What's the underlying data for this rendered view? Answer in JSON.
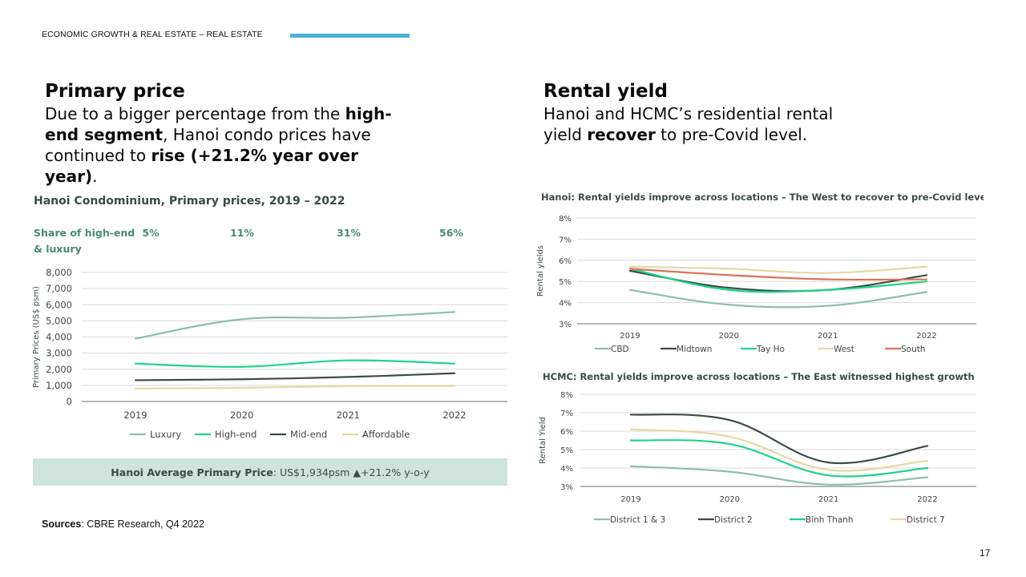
{
  "header": {
    "section": "ECONOMIC GROWTH & REAL ESTATE – REAL ESTATE",
    "accent_color": "#4ab3d4"
  },
  "left": {
    "title": "Primary price",
    "body": [
      {
        "t": "Due to a bigger percentage from the ",
        "b": false
      },
      {
        "t": "high-end segment",
        "b": true
      },
      {
        "t": ", Hanoi condo prices have continued to ",
        "b": false
      },
      {
        "t": "rise (+21.2% year over year)",
        "b": true
      },
      {
        "t": ".",
        "b": false
      }
    ]
  },
  "right": {
    "title": "Rental yield",
    "body": [
      {
        "t": "Hanoi and HCMC’s residential rental yield ",
        "b": false
      },
      {
        "t": "recover",
        "b": true
      },
      {
        "t": " to pre-Covid level.",
        "b": false
      }
    ]
  },
  "avg_box": {
    "label": "Hanoi Average Primary Price",
    "value": ": US$1,934psm",
    "arrow": "▲",
    "change": "+21.2% y-o-y"
  },
  "sources": {
    "label": "Sources",
    "text": ": CBRE Research, Q4 2022"
  },
  "page_number": "17",
  "chart_data": [
    {
      "type": "line",
      "title": "Hanoi Condominium, Primary prices, 2019 – 2022",
      "share_label": [
        "Share of high-end",
        "& luxury"
      ],
      "shares": [
        "5%",
        "11%",
        "31%",
        "56%"
      ],
      "ylabel": "Primary Prices (US$ psm)",
      "ylim": [
        0,
        8000
      ],
      "yticks": [
        "0",
        "1,000",
        "2,000",
        "3,000",
        "4,000",
        "5,000",
        "6,000",
        "7,000",
        "8,000"
      ],
      "categories": [
        "2019",
        "2020",
        "2021",
        "2022"
      ],
      "grid": true,
      "legend": "bottom",
      "series": [
        {
          "name": "Luxury",
          "color": "#8fbcad",
          "values": [
            3900,
            5100,
            5200,
            5550
          ]
        },
        {
          "name": "High-end",
          "color": "#1ed38a",
          "values": [
            2350,
            2150,
            2550,
            2350
          ]
        },
        {
          "name": "Mid-end",
          "color": "#3d4b48",
          "values": [
            1320,
            1380,
            1520,
            1750
          ]
        },
        {
          "name": "Affordable",
          "color": "#e5d7a6",
          "values": [
            800,
            850,
            950,
            960
          ]
        }
      ]
    },
    {
      "type": "line",
      "title": "Hanoi: Rental yields improve across locations – The West to recover to pre-Covid level",
      "ylabel": "Rental yields",
      "ylim": [
        3,
        8
      ],
      "yticks": [
        "3%",
        "4%",
        "5%",
        "6%",
        "7%",
        "8%"
      ],
      "categories": [
        "2019",
        "2020",
        "2021",
        "2022"
      ],
      "grid": true,
      "legend": "bottom",
      "series": [
        {
          "name": "CBD",
          "color": "#8fbcad",
          "values": [
            4.6,
            3.9,
            3.85,
            4.5
          ]
        },
        {
          "name": "Midtown",
          "color": "#3d4b48",
          "values": [
            5.5,
            4.7,
            4.6,
            5.3
          ]
        },
        {
          "name": "Tay Ho",
          "color": "#1ed38a",
          "values": [
            5.6,
            4.6,
            4.6,
            5.0
          ]
        },
        {
          "name": "West",
          "color": "#e5d7a6",
          "values": [
            5.7,
            5.6,
            5.4,
            5.7
          ]
        },
        {
          "name": "South",
          "color": "#d9735a",
          "values": [
            5.6,
            5.3,
            5.1,
            5.1
          ]
        }
      ]
    },
    {
      "type": "line",
      "title": "HCMC: Rental yields improve across locations – The East witnessed highest growth",
      "ylabel": "Rental Yield",
      "ylim": [
        3,
        8
      ],
      "yticks": [
        "3%",
        "4%",
        "5%",
        "6%",
        "7%",
        "8%"
      ],
      "categories": [
        "2019",
        "2020",
        "2021",
        "2022"
      ],
      "grid": true,
      "legend": "bottom",
      "series": [
        {
          "name": "District 1 & 3",
          "color": "#8fbcad",
          "values": [
            4.1,
            3.8,
            3.1,
            3.5
          ]
        },
        {
          "name": "District 2",
          "color": "#3d4b48",
          "values": [
            6.9,
            6.6,
            4.3,
            5.2
          ]
        },
        {
          "name": "Binh Thanh",
          "color": "#1ed38a",
          "values": [
            5.5,
            5.3,
            3.6,
            4.0
          ]
        },
        {
          "name": "District 7",
          "color": "#e5d7a6",
          "values": [
            6.1,
            5.7,
            3.9,
            4.4
          ]
        }
      ]
    }
  ]
}
